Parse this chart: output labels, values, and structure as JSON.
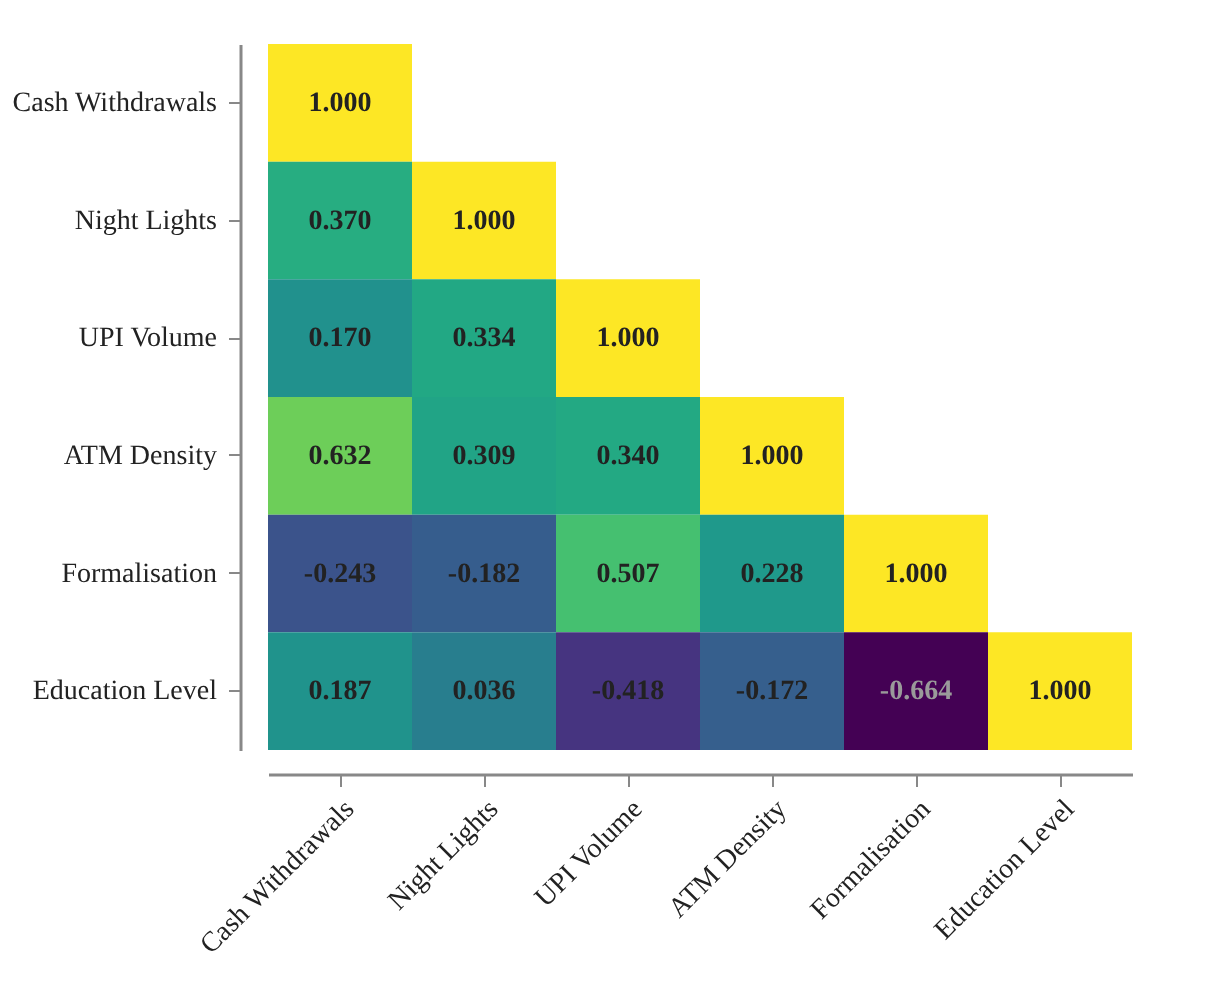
{
  "chart_data": {
    "type": "heatmap",
    "categories": [
      "Cash Withdrawals",
      "Night Lights",
      "UPI Volume",
      "ATM Density",
      "Formalisation",
      "Education Level"
    ],
    "y_categories": [
      "Cash Withdrawals",
      "Night Lights",
      "UPI Volume",
      "ATM Density",
      "Formalisation",
      "Education Level"
    ],
    "cells": [
      [
        1.0,
        null,
        null,
        null,
        null,
        null
      ],
      [
        0.37,
        1.0,
        null,
        null,
        null,
        null
      ],
      [
        0.17,
        0.334,
        1.0,
        null,
        null,
        null
      ],
      [
        0.632,
        0.309,
        0.34,
        1.0,
        null,
        null
      ],
      [
        -0.243,
        -0.182,
        0.507,
        0.228,
        1.0,
        null
      ],
      [
        0.187,
        0.036,
        -0.418,
        -0.172,
        -0.664,
        1.0
      ]
    ],
    "cell_labels": [
      [
        "1.000",
        null,
        null,
        null,
        null,
        null
      ],
      [
        "0.370",
        "1.000",
        null,
        null,
        null,
        null
      ],
      [
        "0.170",
        "0.334",
        "1.000",
        null,
        null,
        null
      ],
      [
        "0.632",
        "0.309",
        "0.340",
        "1.000",
        null,
        null
      ],
      [
        "-0.243",
        "-0.182",
        "0.507",
        "0.228",
        "1.000",
        null
      ],
      [
        "0.187",
        "0.036",
        "-0.418",
        "-0.172",
        "-0.664",
        "1.000"
      ]
    ]
  }
}
